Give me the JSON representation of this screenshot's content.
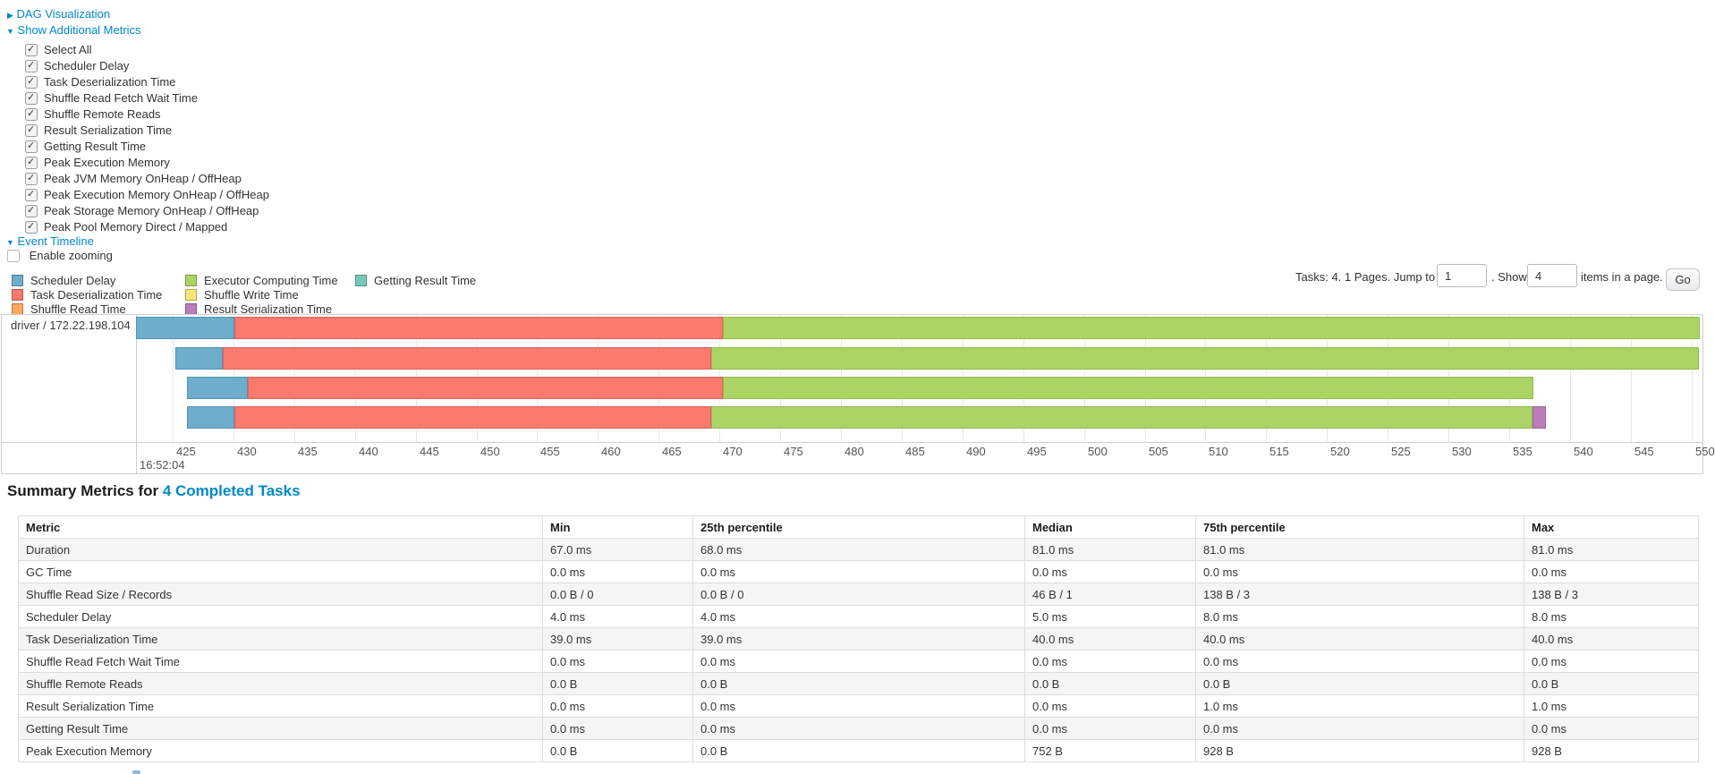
{
  "sections": {
    "dag": {
      "label": "DAG Visualization",
      "arrow": "▶"
    },
    "additional_metrics": {
      "label": "Show Additional Metrics",
      "arrow": "▼"
    },
    "event_timeline": {
      "label": "Event Timeline",
      "arrow": "▼"
    },
    "enable_zooming": {
      "label": "Enable zooming",
      "checked": false
    }
  },
  "metric_checkboxes": [
    {
      "label": "Select All",
      "checked": true
    },
    {
      "label": "Scheduler Delay",
      "checked": true
    },
    {
      "label": "Task Deserialization Time",
      "checked": true
    },
    {
      "label": "Shuffle Read Fetch Wait Time",
      "checked": true
    },
    {
      "label": "Shuffle Remote Reads",
      "checked": true
    },
    {
      "label": "Result Serialization Time",
      "checked": true
    },
    {
      "label": "Getting Result Time",
      "checked": true
    },
    {
      "label": "Peak Execution Memory",
      "checked": true
    },
    {
      "label": "Peak JVM Memory OnHeap / OffHeap",
      "checked": true
    },
    {
      "label": "Peak Execution Memory OnHeap / OffHeap",
      "checked": true
    },
    {
      "label": "Peak Storage Memory OnHeap / OffHeap",
      "checked": true
    },
    {
      "label": "Peak Pool Memory Direct / Mapped",
      "checked": true
    }
  ],
  "palette": {
    "scheduler_delay": {
      "fill": "#6FADCD",
      "border": "#4E94B8"
    },
    "task_deserialization": {
      "fill": "#FB7A6E",
      "border": "#E2625A"
    },
    "shuffle_read": {
      "fill": "#FCA95E",
      "border": "#E08F44"
    },
    "executor_computing": {
      "fill": "#ABD465",
      "border": "#8FBC4D"
    },
    "shuffle_write": {
      "fill": "#F8E678",
      "border": "#D9C558"
    },
    "result_serialization": {
      "fill": "#BA7CBA",
      "border": "#A263A2"
    },
    "getting_result": {
      "fill": "#79C7B7",
      "border": "#5BAD9C"
    }
  },
  "legend": {
    "items": [
      {
        "label": "Scheduler Delay",
        "key": "scheduler_delay",
        "col": 0,
        "row": 0
      },
      {
        "label": "Task Deserialization Time",
        "key": "task_deserialization",
        "col": 0,
        "row": 1
      },
      {
        "label": "Shuffle Read Time",
        "key": "shuffle_read",
        "col": 0,
        "row": 2
      },
      {
        "label": "Executor Computing Time",
        "key": "executor_computing",
        "col": 1,
        "row": 0
      },
      {
        "label": "Shuffle Write Time",
        "key": "shuffle_write",
        "col": 1,
        "row": 1
      },
      {
        "label": "Result Serialization Time",
        "key": "result_serialization",
        "col": 1,
        "row": 2
      },
      {
        "label": "Getting Result Time",
        "key": "getting_result",
        "col": 2,
        "row": 0
      }
    ]
  },
  "pagination": {
    "tasks_info": "Tasks: 4. 1 Pages. Jump to",
    "page_value": "1",
    "show_label": ". Show",
    "page_size_value": "4",
    "items_label": "items in a page.",
    "go_label": "Go"
  },
  "chart_data": {
    "type": "timeline-gantt",
    "group_label": "driver / 172.22.198.104",
    "axis": {
      "min": 425,
      "max": 550,
      "step": 5,
      "major_label": "16:52:04"
    },
    "tasks": [
      {
        "segments": [
          {
            "key": "scheduler_delay",
            "start": 422.0,
            "end": 430.1
          },
          {
            "key": "task_deserialization",
            "start": 430.1,
            "end": 470.3
          },
          {
            "key": "executor_computing",
            "start": 470.3,
            "end": 552.0
          }
        ]
      },
      {
        "segments": [
          {
            "key": "scheduler_delay",
            "start": 425.2,
            "end": 429.1
          },
          {
            "key": "task_deserialization",
            "start": 429.1,
            "end": 469.3
          },
          {
            "key": "executor_computing",
            "start": 469.3,
            "end": 550.6
          }
        ]
      },
      {
        "segments": [
          {
            "key": "scheduler_delay",
            "start": 426.2,
            "end": 431.2
          },
          {
            "key": "task_deserialization",
            "start": 431.2,
            "end": 470.3
          },
          {
            "key": "executor_computing",
            "start": 470.3,
            "end": 537.0
          }
        ]
      },
      {
        "segments": [
          {
            "key": "scheduler_delay",
            "start": 426.2,
            "end": 430.1
          },
          {
            "key": "task_deserialization",
            "start": 430.1,
            "end": 469.3
          },
          {
            "key": "executor_computing",
            "start": 469.3,
            "end": 536.9
          },
          {
            "key": "result_serialization",
            "start": 536.9,
            "end": 538.0
          }
        ]
      }
    ]
  },
  "summary": {
    "title_prefix": "Summary Metrics for ",
    "title_link": "4 Completed Tasks",
    "columns": [
      "Metric",
      "Min",
      "25th percentile",
      "Median",
      "75th percentile",
      "Max"
    ],
    "rows": [
      {
        "metric": "Duration",
        "values": [
          "67.0 ms",
          "68.0 ms",
          "81.0 ms",
          "81.0 ms",
          "81.0 ms"
        ]
      },
      {
        "metric": "GC Time",
        "values": [
          "0.0 ms",
          "0.0 ms",
          "0.0 ms",
          "0.0 ms",
          "0.0 ms"
        ]
      },
      {
        "metric": "Shuffle Read Size / Records",
        "values": [
          "0.0 B / 0",
          "0.0 B / 0",
          "46 B / 1",
          "138 B / 3",
          "138 B / 3"
        ]
      },
      {
        "metric": "Scheduler Delay",
        "values": [
          "4.0 ms",
          "4.0 ms",
          "5.0 ms",
          "8.0 ms",
          "8.0 ms"
        ]
      },
      {
        "metric": "Task Deserialization Time",
        "values": [
          "39.0 ms",
          "39.0 ms",
          "40.0 ms",
          "40.0 ms",
          "40.0 ms"
        ]
      },
      {
        "metric": "Shuffle Read Fetch Wait Time",
        "values": [
          "0.0 ms",
          "0.0 ms",
          "0.0 ms",
          "0.0 ms",
          "0.0 ms"
        ]
      },
      {
        "metric": "Shuffle Remote Reads",
        "values": [
          "0.0 B",
          "0.0 B",
          "0.0 B",
          "0.0 B",
          "0.0 B"
        ]
      },
      {
        "metric": "Result Serialization Time",
        "values": [
          "0.0 ms",
          "0.0 ms",
          "0.0 ms",
          "1.0 ms",
          "1.0 ms"
        ]
      },
      {
        "metric": "Getting Result Time",
        "values": [
          "0.0 ms",
          "0.0 ms",
          "0.0 ms",
          "0.0 ms",
          "0.0 ms"
        ]
      },
      {
        "metric": "Peak Execution Memory",
        "values": [
          "0.0 B",
          "0.0 B",
          "752 B",
          "928 B",
          "928 B"
        ]
      }
    ]
  }
}
